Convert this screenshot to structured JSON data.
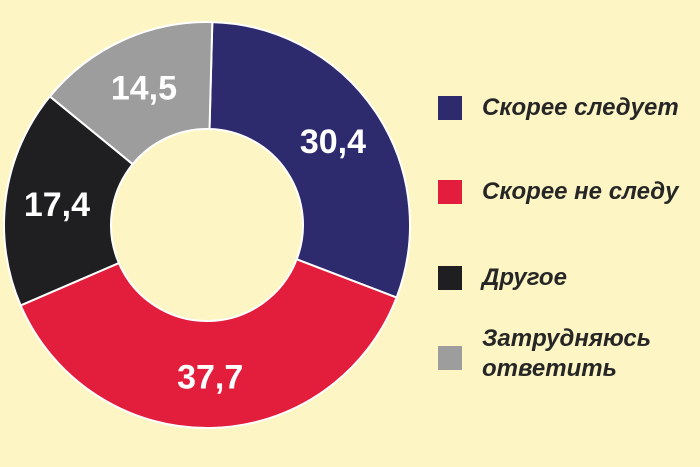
{
  "chart_data": {
    "type": "pie",
    "variant": "donut",
    "title": "",
    "series": [
      {
        "name": "Скорее следует",
        "value": 30.4,
        "label": "30,4",
        "color": "#2e2a6e"
      },
      {
        "name": "Скорее не следует",
        "value": 37.7,
        "label": "37,7",
        "color": "#e31e3c"
      },
      {
        "name": "Другое",
        "value": 17.4,
        "label": "17,4",
        "color": "#1f1f21"
      },
      {
        "name": "Затрудняюсь ответить",
        "value": 14.5,
        "label": "14,5",
        "color": "#9d9d9d"
      }
    ],
    "legend": {
      "placement": "right",
      "entries": [
        "Скорее следует",
        "Скорее не следу",
        "Другое",
        "Затрудняюсь ответить"
      ]
    }
  },
  "colors": {
    "background": "#fdf6c4",
    "separator": "#ffffff"
  }
}
